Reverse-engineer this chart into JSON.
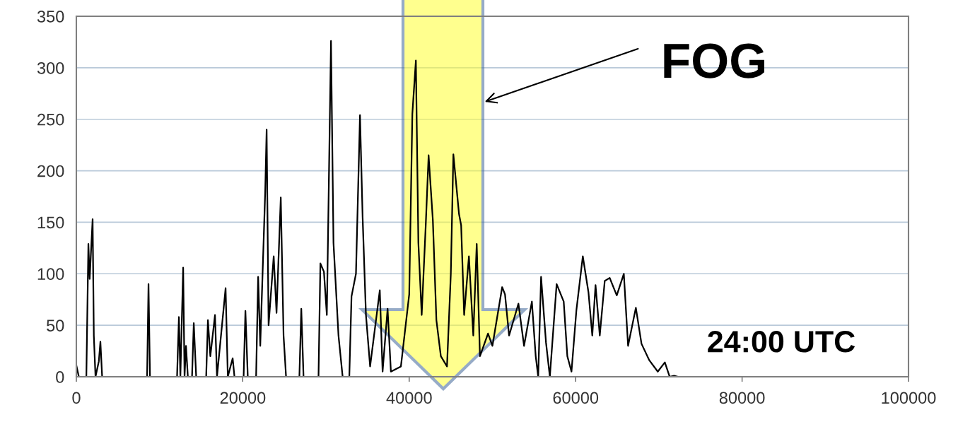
{
  "chart_data": {
    "type": "line",
    "x": [
      0,
      300,
      1200,
      1445,
      1600,
      1955,
      2100,
      2300,
      2700,
      2890,
      3100,
      8500,
      8670,
      8850,
      12100,
      12325,
      12500,
      12835,
      13000,
      13175,
      13400,
      13900,
      14110,
      14400,
      15600,
      15810,
      16100,
      16660,
      16900,
      17935,
      18200,
      18785,
      19000,
      20100,
      20315,
      20600,
      21600,
      21845,
      22100,
      22695,
      22865,
      23100,
      23715,
      24055,
      24565,
      24900,
      25200,
      26800,
      27030,
      27300,
      29100,
      29325,
      29750,
      30100,
      30600,
      30900,
      31500,
      32000,
      32800,
      33065,
      33600,
      34085,
      34400,
      34800,
      35300,
      36465,
      36800,
      37400,
      37800,
      39000,
      40000,
      40375,
      40800,
      41100,
      41500,
      41990,
      42330,
      42840,
      43265,
      43800,
      44540,
      45000,
      45305,
      45985,
      46240,
      46600,
      47175,
      47700,
      48110,
      48500,
      49470,
      50000,
      51170,
      51510,
      52000,
      53125,
      53800,
      54740,
      55200,
      55500,
      55845,
      56440,
      56900,
      57715,
      58565,
      59000,
      59500,
      60095,
      60860,
      61540,
      62000,
      62390,
      62900,
      63495,
      64090,
      64940,
      65790,
      66300,
      67235,
      67915,
      68850,
      69870,
      70720,
      71300,
      71825,
      72300,
      86400
    ],
    "series": [
      {
        "color": "#000000",
        "values": [
          11,
          0,
          0,
          129,
          95,
          153,
          40,
          0,
          15,
          34,
          0,
          0,
          90,
          0,
          0,
          58,
          0,
          106,
          0,
          30,
          0,
          0,
          52,
          0,
          0,
          55,
          20,
          60,
          0,
          86,
          0,
          18,
          0,
          0,
          64,
          0,
          0,
          97,
          30,
          180,
          240,
          50,
          117,
          62,
          174,
          40,
          0,
          0,
          66,
          0,
          0,
          110,
          102,
          60,
          326,
          130,
          40,
          0,
          0,
          78,
          100,
          254,
          155,
          60,
          10,
          84,
          5,
          66,
          5,
          10,
          80,
          255,
          307,
          130,
          60,
          148,
          215,
          152,
          55,
          20,
          10,
          100,
          216,
          158,
          147,
          60,
          117,
          40,
          129,
          20,
          42,
          30,
          87,
          80,
          40,
          71,
          30,
          73,
          20,
          0,
          97,
          33,
          0,
          90,
          73,
          20,
          5,
          65,
          117,
          82,
          40,
          89,
          40,
          93,
          96,
          79,
          100,
          30,
          67,
          32,
          16,
          5,
          14,
          0,
          1,
          0,
          0
        ]
      }
    ],
    "xlim": [
      0,
      100000
    ],
    "ylim": [
      0,
      350
    ],
    "xticks": [
      0,
      20000,
      40000,
      60000,
      80000,
      100000
    ],
    "yticks": [
      0,
      50,
      100,
      150,
      200,
      250,
      300,
      350
    ],
    "grid": "y",
    "annotations": [
      "FOG",
      "24:00 UTC"
    ]
  }
}
